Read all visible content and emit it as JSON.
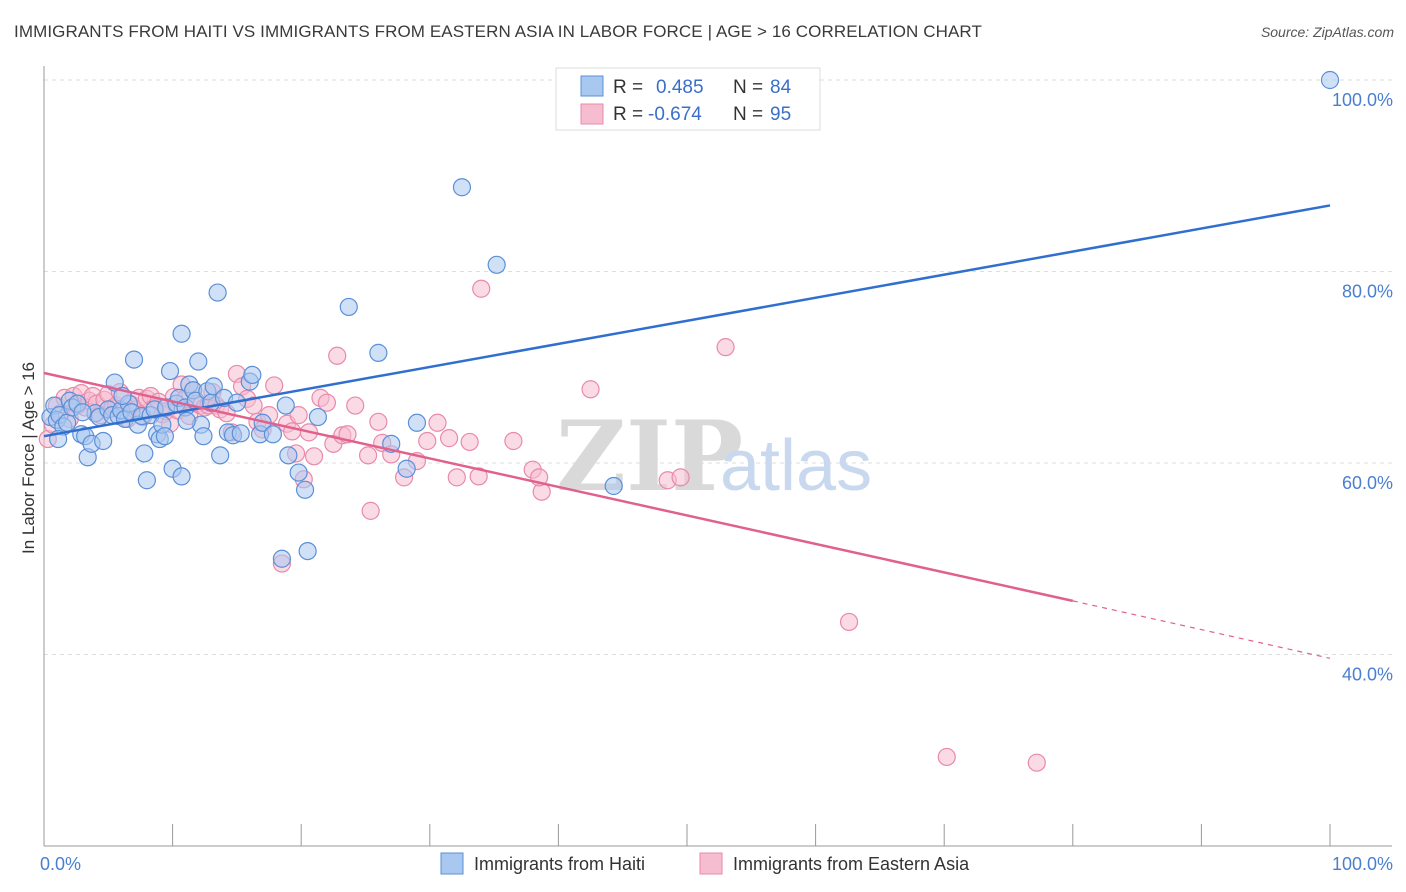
{
  "title": "IMMIGRANTS FROM HAITI VS IMMIGRANTS FROM EASTERN ASIA IN LABOR FORCE | AGE > 16 CORRELATION CHART",
  "source": "Source: ZipAtlas.com",
  "watermark": {
    "zip": "ZIP",
    "atlas": "atlas"
  },
  "stats": {
    "haiti": {
      "r_label": "R =",
      "r_value": "0.485",
      "n_label": "N =",
      "n_value": "84"
    },
    "easia": {
      "r_label": "R =",
      "r_value": "-0.674",
      "n_label": "N =",
      "n_value": "95"
    }
  },
  "legend": {
    "haiti": "Immigrants from Haiti",
    "easia": "Immigrants from Eastern Asia"
  },
  "colors": {
    "haiti_fill": "#a9c8f0",
    "haiti_stroke": "#5b8fd8",
    "haiti_line": "#2f6fcf",
    "easia_fill": "#f6bcd0",
    "easia_stroke": "#e98aaa",
    "easia_line": "#e0608e",
    "tick": "#4a7fd0",
    "grid": "#dddddd"
  },
  "chart_data": {
    "type": "scatter",
    "xlabel": "",
    "ylabel": "In Labor Force | Age > 16",
    "xlim": [
      0,
      100
    ],
    "ylim": [
      20,
      100
    ],
    "x_tick_labels": [
      {
        "value": 0,
        "label": "0.0%"
      },
      {
        "value": 100,
        "label": "100.0%"
      }
    ],
    "y_tick_labels": [
      {
        "value": 100,
        "label": "100.0%"
      },
      {
        "value": 80,
        "label": "80.0%"
      },
      {
        "value": 60,
        "label": "60.0%"
      },
      {
        "value": 40,
        "label": "40.0%"
      }
    ],
    "grid": true,
    "legend_position": "bottom",
    "series": [
      {
        "name": "Immigrants from Haiti",
        "r": 0.485,
        "n": 84,
        "trend": {
          "x0": 0,
          "y0": 62.8,
          "x1": 100,
          "y1": 86.9
        },
        "points": [
          [
            0.5,
            64.8
          ],
          [
            0.8,
            66.0
          ],
          [
            1.0,
            64.5
          ],
          [
            1.2,
            65.0
          ],
          [
            1.5,
            63.8
          ],
          [
            1.8,
            64.2
          ],
          [
            2.0,
            66.5
          ],
          [
            2.2,
            65.8
          ],
          [
            2.6,
            66.2
          ],
          [
            2.9,
            63.0
          ],
          [
            3.2,
            62.8
          ],
          [
            3.4,
            60.6
          ],
          [
            3.7,
            62.0
          ],
          [
            4.0,
            65.2
          ],
          [
            4.3,
            64.8
          ],
          [
            4.6,
            62.3
          ],
          [
            5.0,
            65.6
          ],
          [
            5.3,
            65.0
          ],
          [
            5.5,
            68.4
          ],
          [
            5.8,
            64.9
          ],
          [
            6.0,
            65.5
          ],
          [
            6.3,
            64.6
          ],
          [
            6.6,
            66.2
          ],
          [
            6.8,
            65.3
          ],
          [
            7.0,
            70.8
          ],
          [
            7.3,
            64.0
          ],
          [
            7.6,
            64.9
          ],
          [
            7.8,
            61.0
          ],
          [
            8.0,
            58.2
          ],
          [
            8.3,
            65.0
          ],
          [
            8.6,
            65.6
          ],
          [
            8.8,
            63.0
          ],
          [
            9.0,
            62.5
          ],
          [
            9.2,
            64.0
          ],
          [
            9.5,
            65.8
          ],
          [
            9.8,
            69.6
          ],
          [
            10.0,
            59.4
          ],
          [
            10.3,
            66.2
          ],
          [
            10.5,
            66.8
          ],
          [
            10.7,
            58.6
          ],
          [
            10.7,
            73.5
          ],
          [
            11.0,
            65.8
          ],
          [
            11.3,
            68.2
          ],
          [
            11.6,
            67.6
          ],
          [
            11.8,
            66.5
          ],
          [
            12.0,
            70.6
          ],
          [
            12.2,
            64.0
          ],
          [
            12.4,
            62.8
          ],
          [
            12.7,
            67.5
          ],
          [
            13.0,
            66.3
          ],
          [
            13.2,
            68.0
          ],
          [
            13.5,
            77.8
          ],
          [
            13.7,
            60.8
          ],
          [
            14.0,
            66.8
          ],
          [
            14.3,
            63.2
          ],
          [
            14.7,
            62.9
          ],
          [
            15.3,
            63.1
          ],
          [
            16.0,
            68.5
          ],
          [
            16.2,
            69.2
          ],
          [
            16.8,
            63.0
          ],
          [
            17.0,
            64.2
          ],
          [
            17.8,
            63.0
          ],
          [
            18.5,
            50.0
          ],
          [
            19.0,
            60.8
          ],
          [
            19.8,
            59.0
          ],
          [
            20.3,
            57.2
          ],
          [
            20.5,
            50.8
          ],
          [
            21.3,
            64.8
          ],
          [
            23.7,
            76.3
          ],
          [
            26.0,
            71.5
          ],
          [
            27.0,
            62.0
          ],
          [
            28.2,
            59.4
          ],
          [
            29.0,
            64.2
          ],
          [
            32.5,
            88.8
          ],
          [
            35.2,
            80.7
          ],
          [
            44.3,
            57.6
          ],
          [
            100.0,
            100.0
          ],
          [
            1.1,
            62.5
          ],
          [
            3.0,
            65.3
          ],
          [
            6.1,
            67.0
          ],
          [
            9.4,
            62.8
          ],
          [
            11.1,
            64.4
          ],
          [
            15.0,
            66.3
          ],
          [
            18.8,
            66.0
          ]
        ]
      },
      {
        "name": "Immigrants from Eastern Asia",
        "r": -0.674,
        "n": 95,
        "trend": {
          "x0": 0,
          "y0": 69.4,
          "x1": 80,
          "y1": 45.6,
          "dash_to_x": 100,
          "dash_to_y": 39.6
        },
        "points": [
          [
            0.3,
            62.5
          ],
          [
            0.7,
            64.0
          ],
          [
            1.0,
            66.0
          ],
          [
            1.3,
            65.2
          ],
          [
            1.6,
            66.8
          ],
          [
            2.0,
            64.6
          ],
          [
            2.3,
            67.0
          ],
          [
            2.6,
            66.0
          ],
          [
            2.9,
            67.3
          ],
          [
            3.2,
            65.8
          ],
          [
            3.5,
            66.5
          ],
          [
            3.8,
            67.0
          ],
          [
            4.1,
            66.2
          ],
          [
            4.4,
            65.0
          ],
          [
            4.7,
            66.6
          ],
          [
            5.0,
            67.2
          ],
          [
            5.3,
            65.7
          ],
          [
            5.6,
            66.0
          ],
          [
            5.9,
            67.4
          ],
          [
            6.2,
            65.4
          ],
          [
            6.5,
            64.6
          ],
          [
            6.8,
            66.1
          ],
          [
            7.1,
            65.6
          ],
          [
            7.4,
            66.8
          ],
          [
            7.7,
            64.8
          ],
          [
            8.0,
            66.7
          ],
          [
            8.3,
            67.0
          ],
          [
            8.6,
            65.8
          ],
          [
            8.9,
            66.4
          ],
          [
            9.2,
            65.1
          ],
          [
            9.5,
            65.4
          ],
          [
            9.8,
            64.1
          ],
          [
            10.1,
            66.9
          ],
          [
            10.4,
            65.5
          ],
          [
            10.7,
            68.2
          ],
          [
            11.0,
            66.7
          ],
          [
            11.3,
            64.9
          ],
          [
            11.6,
            67.6
          ],
          [
            11.9,
            66.2
          ],
          [
            12.2,
            66.0
          ],
          [
            12.5,
            65.8
          ],
          [
            12.8,
            66.0
          ],
          [
            13.1,
            67.4
          ],
          [
            13.4,
            66.0
          ],
          [
            13.7,
            65.6
          ],
          [
            14.2,
            65.2
          ],
          [
            14.6,
            63.2
          ],
          [
            15.0,
            69.3
          ],
          [
            15.4,
            68.0
          ],
          [
            15.8,
            66.7
          ],
          [
            16.3,
            66.0
          ],
          [
            16.6,
            64.3
          ],
          [
            17.0,
            63.5
          ],
          [
            17.5,
            65.0
          ],
          [
            17.9,
            68.1
          ],
          [
            18.5,
            49.5
          ],
          [
            18.9,
            64.1
          ],
          [
            19.3,
            63.3
          ],
          [
            19.6,
            61.0
          ],
          [
            19.8,
            65.0
          ],
          [
            20.2,
            58.3
          ],
          [
            20.6,
            63.2
          ],
          [
            21.0,
            60.7
          ],
          [
            21.5,
            66.8
          ],
          [
            22.0,
            66.3
          ],
          [
            22.5,
            62.0
          ],
          [
            22.8,
            71.2
          ],
          [
            23.2,
            62.9
          ],
          [
            23.6,
            63.0
          ],
          [
            24.2,
            66.0
          ],
          [
            25.2,
            60.8
          ],
          [
            25.4,
            55.0
          ],
          [
            26.0,
            64.3
          ],
          [
            26.3,
            62.1
          ],
          [
            27.0,
            60.9
          ],
          [
            28.0,
            58.5
          ],
          [
            29.0,
            60.2
          ],
          [
            29.8,
            62.3
          ],
          [
            30.6,
            64.2
          ],
          [
            31.5,
            62.6
          ],
          [
            32.1,
            58.5
          ],
          [
            33.1,
            62.2
          ],
          [
            33.8,
            58.6
          ],
          [
            34.0,
            78.2
          ],
          [
            36.5,
            62.3
          ],
          [
            38.0,
            59.3
          ],
          [
            38.7,
            57.0
          ],
          [
            38.5,
            58.5
          ],
          [
            42.5,
            67.7
          ],
          [
            48.5,
            58.2
          ],
          [
            49.5,
            58.5
          ],
          [
            53.0,
            72.1
          ],
          [
            62.6,
            43.4
          ],
          [
            70.2,
            29.3
          ],
          [
            77.2,
            28.7
          ]
        ]
      }
    ]
  }
}
